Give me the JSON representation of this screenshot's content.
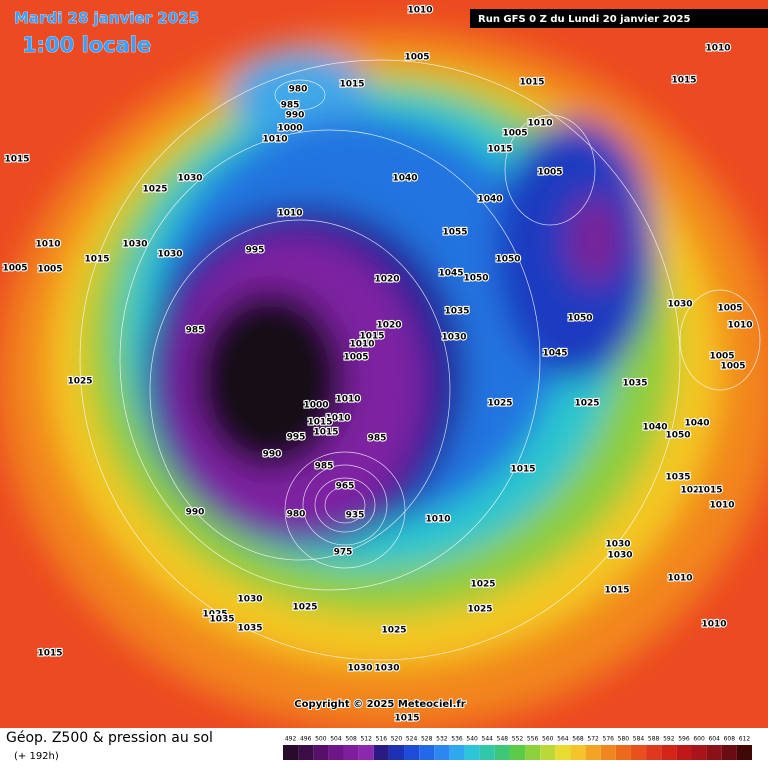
{
  "header": {
    "date": "Mardi 28 janvier 2025",
    "time": "1:00 locale",
    "run": "Run GFS 0 Z du Lundi 20 janvier 2025"
  },
  "footer": {
    "copyright": "Copyright © 2025 Meteociel.fr",
    "field": "Géop. Z500 & pression au sol",
    "lead": "(+ 192h)"
  },
  "scale": {
    "ticks": [
      492,
      496,
      500,
      504,
      508,
      512,
      516,
      520,
      524,
      528,
      532,
      536,
      540,
      544,
      548,
      552,
      556,
      560,
      564,
      568,
      572,
      576,
      580,
      584,
      588,
      592,
      596,
      600,
      604,
      608,
      612
    ]
  },
  "isobar_labels": [
    1010,
    1005,
    980,
    1015,
    985,
    990,
    1000,
    1010,
    1015,
    1015,
    1010,
    1010,
    1005,
    1015,
    1005,
    1040,
    1040,
    1055,
    1050,
    1045,
    1050,
    1035,
    1030,
    1020,
    1020,
    1015,
    1010,
    1005,
    1010,
    1000,
    1010,
    1015,
    1015,
    995,
    985,
    990,
    985,
    965,
    935,
    980,
    975,
    990,
    985,
    1025,
    1015,
    1025,
    1030,
    1010,
    995,
    1030,
    1030,
    1010,
    1015,
    1005,
    1005,
    1050,
    1045,
    1035,
    1025,
    1025,
    1030,
    1005,
    1010,
    1005,
    1005,
    1040,
    1040,
    1050,
    1015,
    1035,
    1020,
    1015,
    1010,
    1010,
    1030,
    1030,
    1015,
    1010,
    1010,
    1025,
    1025,
    1025,
    1030,
    1025,
    1025,
    1035,
    1035,
    1015,
    1030,
    1030,
    1015
  ]
}
